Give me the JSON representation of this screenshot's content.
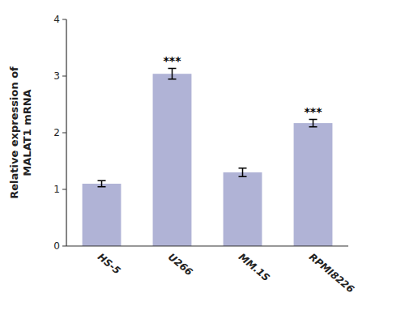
{
  "chart_data": {
    "type": "bar",
    "categories": [
      "HS-5",
      "U266",
      "MM.1S",
      "RPMI8226"
    ],
    "values": [
      1.1,
      3.04,
      1.3,
      2.17
    ],
    "errors": [
      0.055,
      0.095,
      0.075,
      0.065
    ],
    "color": "#b0b3d6",
    "ylabel": "Relative expression of\nMALAT1 mRNA",
    "ylim": [
      0,
      4
    ],
    "yticks": [
      0,
      1,
      2,
      3,
      4
    ],
    "grid": false,
    "annotations": [
      {
        "text": "***",
        "category": "U266"
      },
      {
        "text": "***",
        "category": "RPMI8226"
      }
    ]
  }
}
